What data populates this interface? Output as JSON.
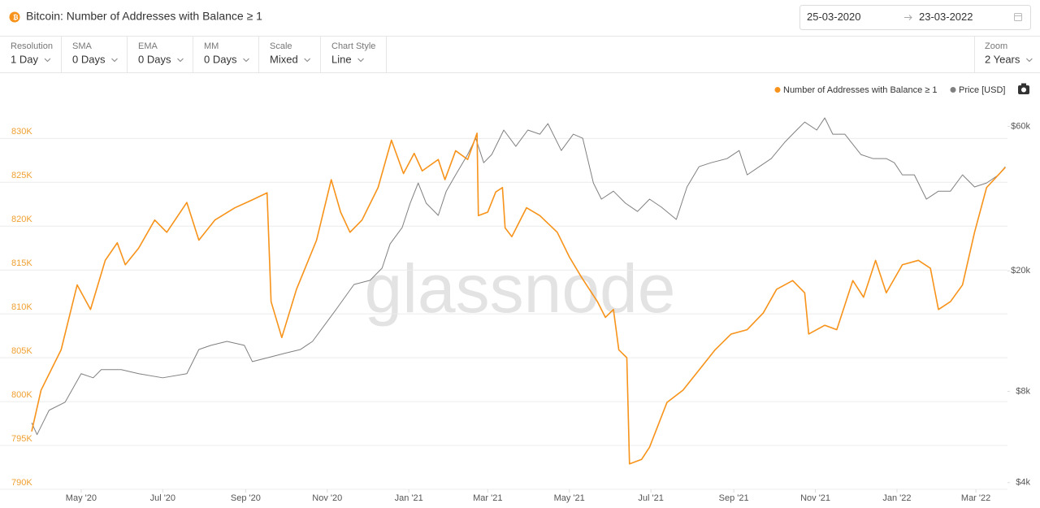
{
  "ui": {
    "title": "Bitcoin: Number of Addresses with Balance ≥ 1",
    "date_from": "25-03-2020",
    "date_to": "23-03-2022",
    "controls": [
      {
        "label": "Resolution",
        "value": "1 Day"
      },
      {
        "label": "SMA",
        "value": "0 Days"
      },
      {
        "label": "EMA",
        "value": "0 Days"
      },
      {
        "label": "MM",
        "value": "0 Days"
      },
      {
        "label": "Scale",
        "value": "Mixed"
      },
      {
        "label": "Chart Style",
        "value": "Line"
      }
    ],
    "zoom": {
      "label": "Zoom",
      "value": "2 Years"
    },
    "watermark": "glassnode"
  },
  "chart_data": {
    "type": "line",
    "xlim": [
      "2020-03-25",
      "2022-03-23"
    ],
    "xticks": [
      {
        "value": "2020-05-01",
        "label": "May '20"
      },
      {
        "value": "2020-07-01",
        "label": "Jul '20"
      },
      {
        "value": "2020-09-01",
        "label": "Sep '20"
      },
      {
        "value": "2020-11-01",
        "label": "Nov '20"
      },
      {
        "value": "2021-01-01",
        "label": "Jan '21"
      },
      {
        "value": "2021-03-01",
        "label": "Mar '21"
      },
      {
        "value": "2021-05-01",
        "label": "May '21"
      },
      {
        "value": "2021-07-01",
        "label": "Jul '21"
      },
      {
        "value": "2021-09-01",
        "label": "Sep '21"
      },
      {
        "value": "2021-11-01",
        "label": "Nov '21"
      },
      {
        "value": "2022-01-01",
        "label": "Jan '22"
      },
      {
        "value": "2022-03-01",
        "label": "Mar '22"
      }
    ],
    "ylim": [
      790000,
      834200
    ],
    "yticks": [
      {
        "value": 790000,
        "label": "790K"
      },
      {
        "value": 795000,
        "label": "795K"
      },
      {
        "value": 800000,
        "label": "800K"
      },
      {
        "value": 805000,
        "label": "805K"
      },
      {
        "value": 810000,
        "label": "810K"
      },
      {
        "value": 815000,
        "label": "815K"
      },
      {
        "value": 820000,
        "label": "820K"
      },
      {
        "value": 825000,
        "label": "825K"
      },
      {
        "value": 830000,
        "label": "830K"
      }
    ],
    "y2lim": [
      3800,
      72400
    ],
    "y2scale": "log",
    "y2ticks": [
      {
        "value": 4000,
        "label": "$4k"
      },
      {
        "value": 8000,
        "label": "$8k"
      },
      {
        "value": 20000,
        "label": "$20k"
      },
      {
        "value": 60000,
        "label": "$60k"
      }
    ],
    "grid": true,
    "legend": "top-right",
    "series": [
      {
        "name": "Number of Addresses with Balance ≥ 1",
        "color": "#f7931a",
        "x": [
          "2020-03-25",
          "2020-04-01",
          "2020-04-16",
          "2020-04-28",
          "2020-05-08",
          "2020-05-19",
          "2020-05-28",
          "2020-06-03",
          "2020-06-13",
          "2020-06-25",
          "2020-07-04",
          "2020-07-19",
          "2020-07-28",
          "2020-08-09",
          "2020-08-24",
          "2020-09-06",
          "2020-09-17",
          "2020-09-20",
          "2020-09-28",
          "2020-10-09",
          "2020-10-24",
          "2020-11-04",
          "2020-11-11",
          "2020-11-18",
          "2020-11-27",
          "2020-12-09",
          "2020-12-19",
          "2020-12-28",
          "2021-01-05",
          "2021-01-11",
          "2021-01-23",
          "2021-01-28",
          "2021-02-05",
          "2021-02-14",
          "2021-02-21",
          "2021-02-22",
          "2021-03-01",
          "2021-03-07",
          "2021-03-12",
          "2021-03-14",
          "2021-03-19",
          "2021-03-30",
          "2021-04-09",
          "2021-04-22",
          "2021-05-01",
          "2021-05-10",
          "2021-05-22",
          "2021-05-28",
          "2021-06-03",
          "2021-06-07",
          "2021-06-13",
          "2021-06-15",
          "2021-06-24",
          "2021-06-30",
          "2021-07-13",
          "2021-07-25",
          "2021-08-06",
          "2021-08-18",
          "2021-08-30",
          "2021-09-11",
          "2021-09-23",
          "2021-10-03",
          "2021-10-15",
          "2021-10-24",
          "2021-10-27",
          "2021-11-08",
          "2021-11-17",
          "2021-11-29",
          "2021-12-07",
          "2021-12-16",
          "2021-12-24",
          "2022-01-05",
          "2022-01-17",
          "2022-01-26",
          "2022-02-01",
          "2022-02-10",
          "2022-02-19",
          "2022-02-28",
          "2022-03-09",
          "2022-03-23"
        ],
        "values": [
          796600,
          801300,
          805900,
          813300,
          810500,
          816100,
          818100,
          815600,
          817500,
          820700,
          819300,
          822700,
          818400,
          820700,
          822100,
          823000,
          823800,
          811400,
          807300,
          812800,
          818400,
          825300,
          821600,
          819300,
          820700,
          824400,
          829800,
          826000,
          828300,
          826300,
          827600,
          825300,
          828600,
          827600,
          830600,
          821200,
          821600,
          823900,
          824400,
          819800,
          818800,
          822100,
          821200,
          819300,
          816500,
          814200,
          811400,
          809600,
          810500,
          805900,
          805000,
          792900,
          793400,
          794800,
          799900,
          801300,
          803600,
          805900,
          807700,
          808200,
          810100,
          812800,
          813800,
          812400,
          807700,
          808700,
          808200,
          813800,
          811900,
          816100,
          812400,
          815600,
          816100,
          815200,
          810500,
          811400,
          813300,
          819300,
          824400,
          826700
        ]
      },
      {
        "name": "Price [USD]",
        "color": "#808080",
        "axis": "y2",
        "x": [
          "2020-03-25",
          "2020-03-29",
          "2020-04-07",
          "2020-04-19",
          "2020-05-01",
          "2020-05-10",
          "2020-05-16",
          "2020-05-31",
          "2020-06-13",
          "2020-07-01",
          "2020-07-19",
          "2020-07-28",
          "2020-08-06",
          "2020-08-18",
          "2020-08-31",
          "2020-09-06",
          "2020-09-18",
          "2020-09-30",
          "2020-10-12",
          "2020-10-21",
          "2020-10-30",
          "2020-11-08",
          "2020-11-21",
          "2020-12-03",
          "2020-12-12",
          "2020-12-18",
          "2020-12-27",
          "2021-01-02",
          "2021-01-08",
          "2021-01-14",
          "2021-01-23",
          "2021-01-29",
          "2021-02-05",
          "2021-02-14",
          "2021-02-20",
          "2021-02-26",
          "2021-03-04",
          "2021-03-13",
          "2021-03-22",
          "2021-03-31",
          "2021-04-09",
          "2021-04-15",
          "2021-04-25",
          "2021-05-04",
          "2021-05-11",
          "2021-05-19",
          "2021-05-25",
          "2021-06-03",
          "2021-06-12",
          "2021-06-21",
          "2021-06-30",
          "2021-07-09",
          "2021-07-20",
          "2021-07-28",
          "2021-08-06",
          "2021-08-15",
          "2021-08-27",
          "2021-09-05",
          "2021-09-11",
          "2021-09-20",
          "2021-09-29",
          "2021-10-09",
          "2021-10-18",
          "2021-10-24",
          "2021-11-02",
          "2021-11-08",
          "2021-11-14",
          "2021-11-23",
          "2021-12-05",
          "2021-12-14",
          "2021-12-24",
          "2021-12-30",
          "2022-01-05",
          "2022-01-14",
          "2022-01-23",
          "2022-02-01",
          "2022-02-10",
          "2022-02-19",
          "2022-02-28",
          "2022-03-09",
          "2022-03-18",
          "2022-03-23"
        ],
        "values": [
          6300,
          5760,
          6930,
          7370,
          9150,
          8870,
          9440,
          9440,
          9150,
          8870,
          9150,
          11000,
          11350,
          11700,
          11350,
          10030,
          10350,
          10680,
          11000,
          11700,
          13240,
          14990,
          18030,
          18610,
          20420,
          24550,
          27790,
          33440,
          39000,
          33440,
          30480,
          36650,
          41490,
          48420,
          54810,
          45500,
          48420,
          58320,
          51530,
          58320,
          56510,
          61240,
          49920,
          56510,
          54810,
          39000,
          34490,
          36650,
          33440,
          31410,
          34490,
          32430,
          29560,
          37840,
          44150,
          45500,
          46960,
          49920,
          41490,
          44150,
          46960,
          53110,
          58320,
          61960,
          58320,
          63960,
          56510,
          56510,
          48420,
          46960,
          46960,
          45500,
          41490,
          41490,
          34490,
          36650,
          36650,
          41490,
          37840,
          39000,
          41490,
          44150
        ]
      }
    ]
  }
}
